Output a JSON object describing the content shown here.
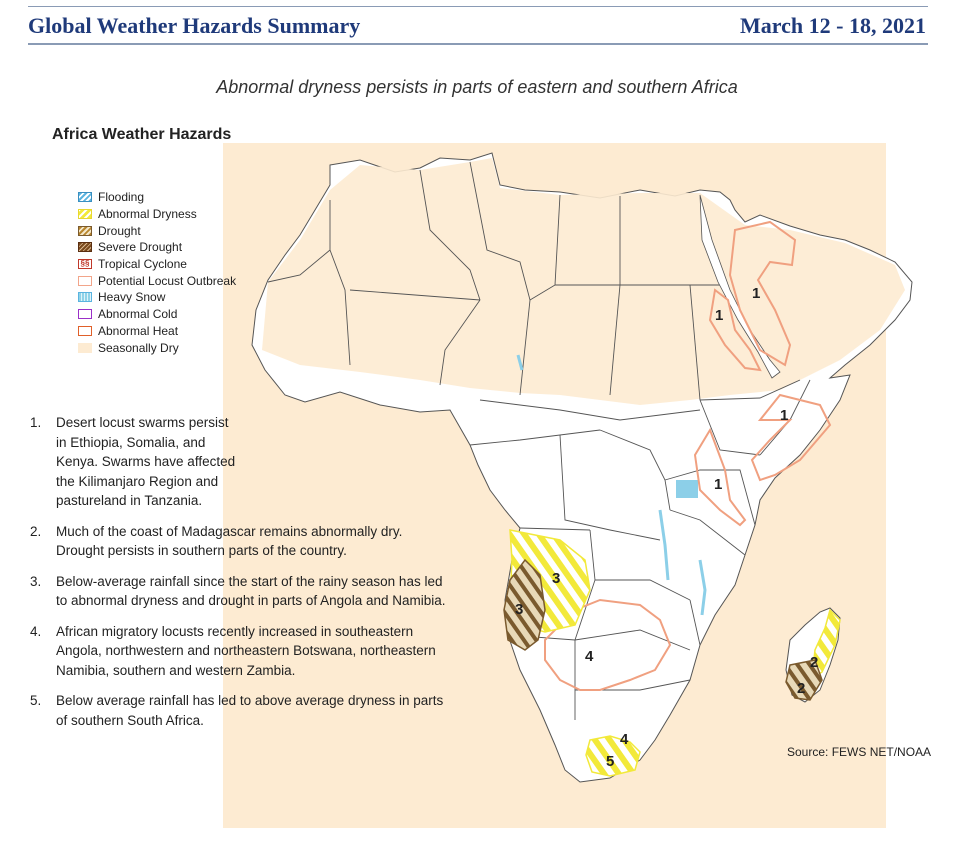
{
  "header": {
    "title": "Global Weather Hazards Summary",
    "date": "March 12 - 18, 2021"
  },
  "headline": "Abnormal dryness persists in parts of eastern and southern Africa",
  "map": {
    "title": "Africa Weather Hazards",
    "legend": [
      {
        "label": "Flooding",
        "icon": "flooding-swatch",
        "color": "#5ab4e0"
      },
      {
        "label": "Abnormal Dryness",
        "icon": "abnormal-dryness-swatch",
        "color": "#f2e93a"
      },
      {
        "label": "Drought",
        "icon": "drought-swatch",
        "color": "#b8862e"
      },
      {
        "label": "Severe Drought",
        "icon": "severe-drought-swatch",
        "color": "#7a4a1e"
      },
      {
        "label": "Tropical Cyclone",
        "icon": "tropical-cyclone-swatch",
        "color": "#c0392b"
      },
      {
        "label": "Potential Locust Outbreak",
        "icon": "locust-swatch",
        "color": "#f2a58a"
      },
      {
        "label": "Heavy Snow",
        "icon": "heavy-snow-swatch",
        "color": "#8fd3e8"
      },
      {
        "label": "Abnormal Cold",
        "icon": "abnormal-cold-swatch",
        "color": "#9b30c8"
      },
      {
        "label": "Abnormal Heat",
        "icon": "abnormal-heat-swatch",
        "color": "#e0602a"
      },
      {
        "label": "Seasonally Dry",
        "icon": "seasonally-dry-swatch",
        "color": "#fdebd2"
      }
    ],
    "labels": {
      "l1a": "1",
      "l1b": "1",
      "l1c": "1",
      "l1d": "1",
      "l2a": "2",
      "l2b": "2",
      "l3a": "3",
      "l3b": "3",
      "l4a": "4",
      "l4b": "4",
      "l5": "5"
    },
    "source": "Source: FEWS NET/NOAA"
  },
  "notes": [
    {
      "num": "1.",
      "text": "Desert locust swarms persist in Ethiopia, Somalia, and Kenya. Swarms have affected the Kilimanjaro Region and pastureland in Tanzania."
    },
    {
      "num": "2.",
      "text": "Much of the coast of Madagascar remains abnormally dry. Drought persists in southern parts of the country."
    },
    {
      "num": "3.",
      "text": "Below-average rainfall since the start of the rainy season has led to abnormal dryness and drought in parts of Angola and Namibia."
    },
    {
      "num": "4.",
      "text": "African migratory locusts recently increased in southeastern Angola, northwestern and northeastern Botswana, northeastern Namibia, southern and western Zambia."
    },
    {
      "num": "5.",
      "text": "Below average rainfall has led to above average dryness in parts of southern South Africa."
    }
  ]
}
